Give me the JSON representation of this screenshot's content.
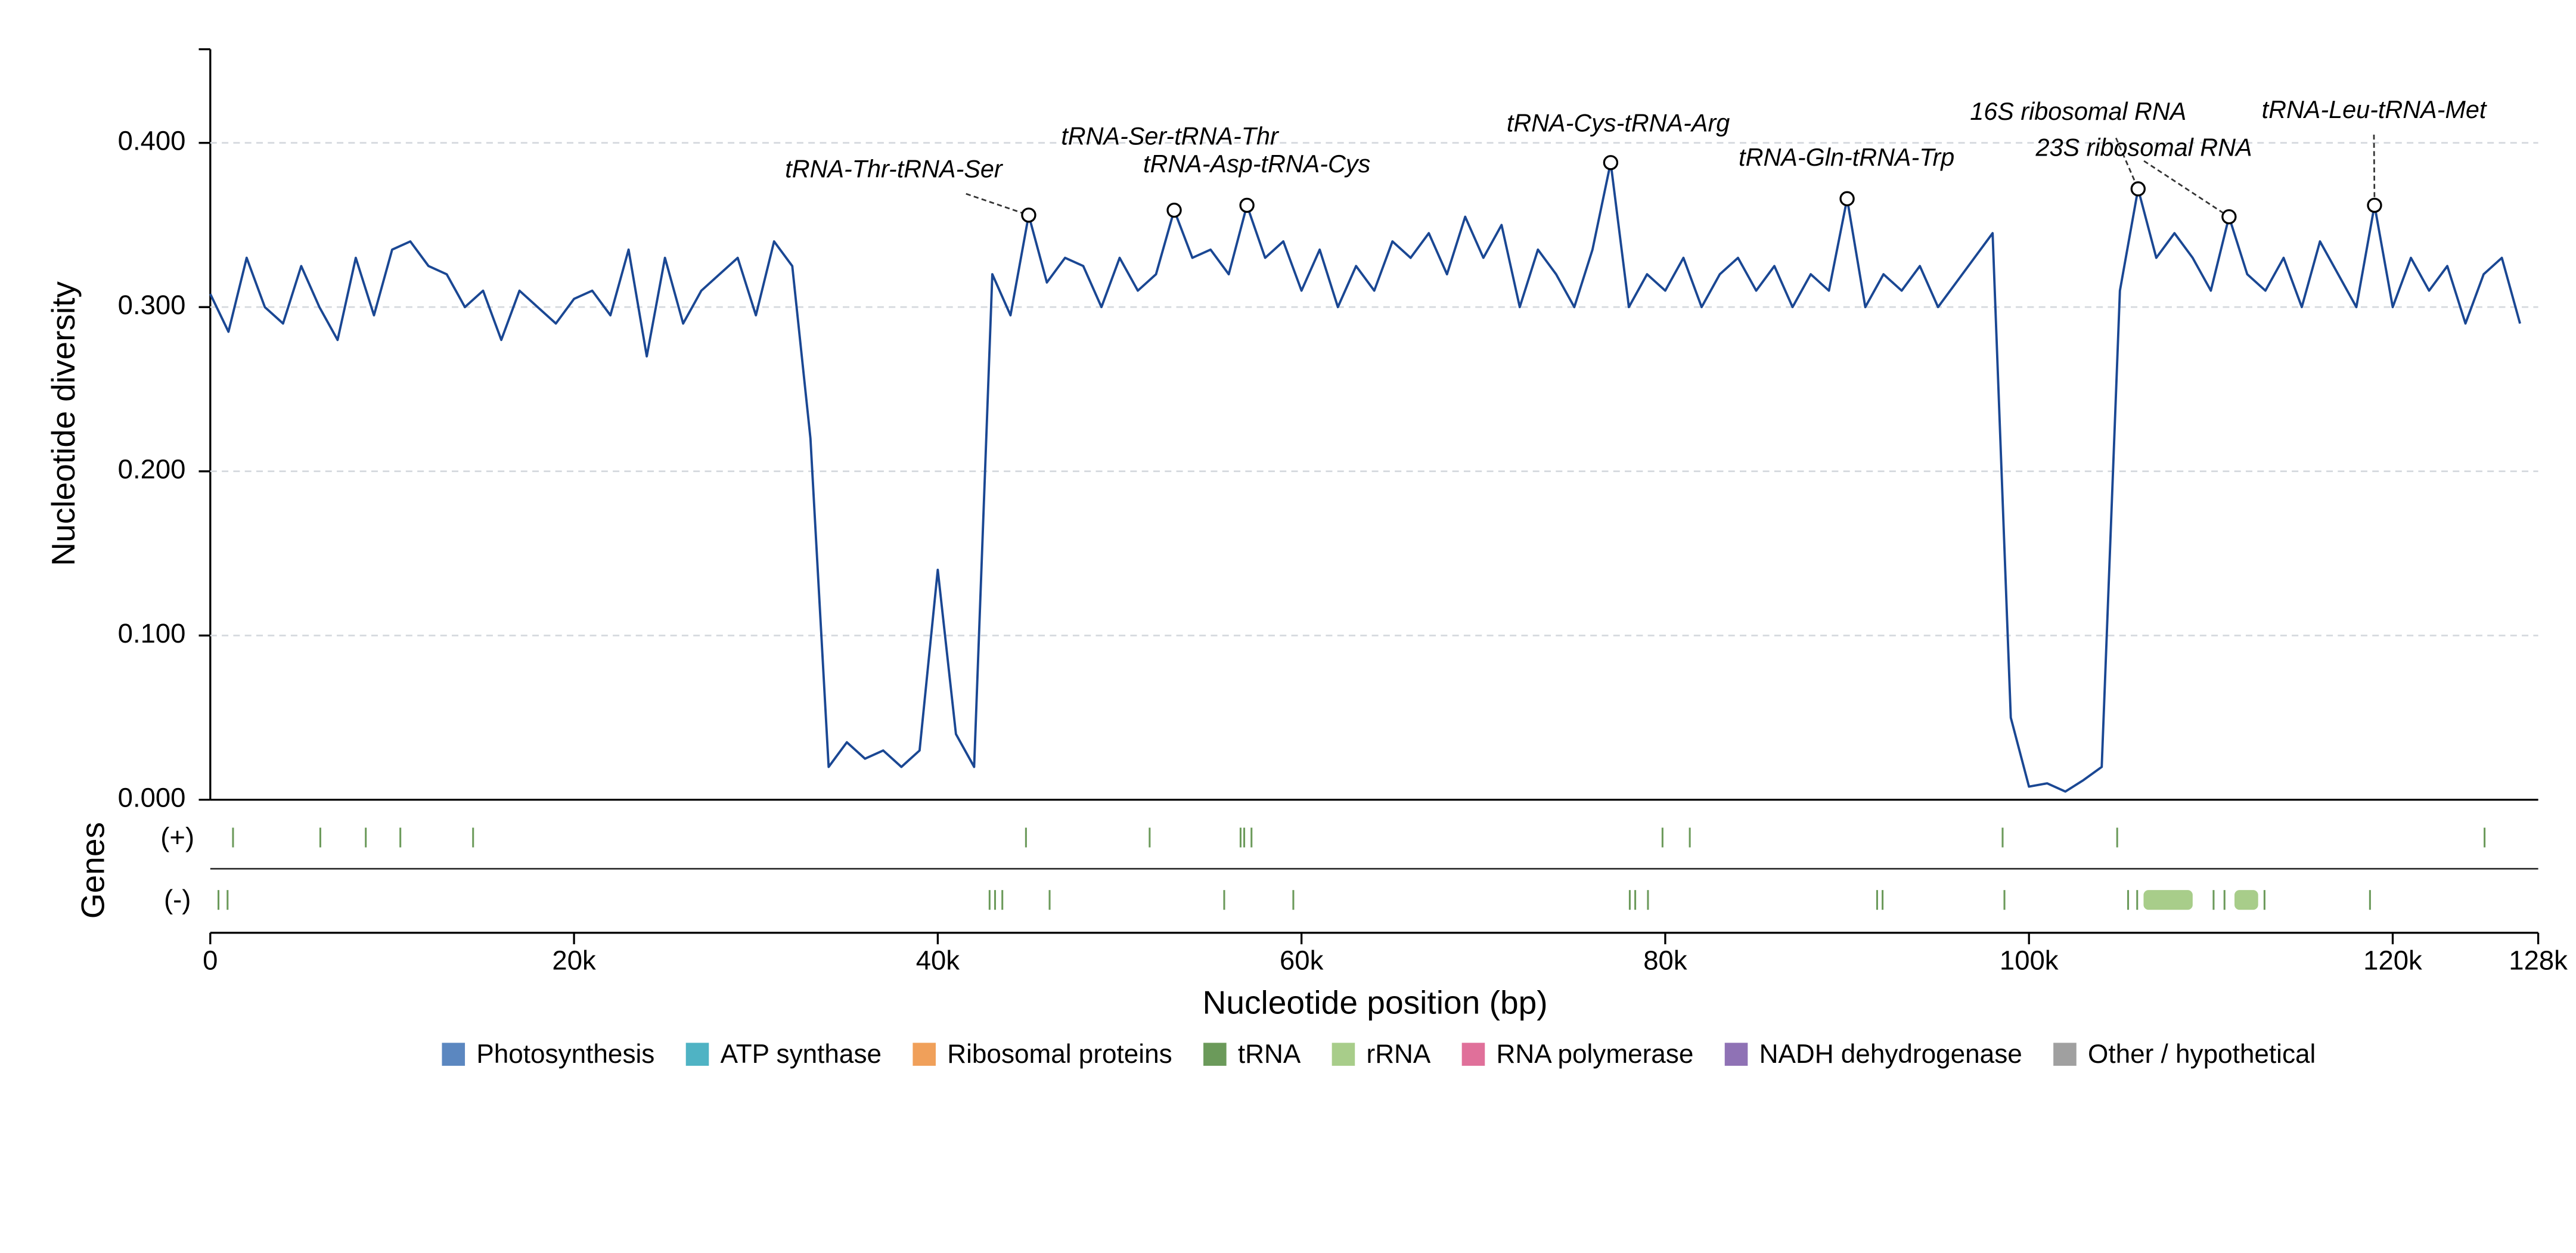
{
  "chart_data": {
    "type": "line",
    "xlabel": "Nucleotide position (bp)",
    "ylabel": "Nucleotide diversity",
    "x": [
      0,
      1000,
      2000,
      3000,
      4000,
      5000,
      6000,
      7000,
      8000,
      9000,
      10000,
      11000,
      12000,
      13000,
      14000,
      15000,
      16000,
      17000,
      18000,
      19000,
      20000,
      21000,
      22000,
      23000,
      24000,
      25000,
      26000,
      27000,
      28000,
      29000,
      30000,
      31000,
      32000,
      33000,
      34000,
      35000,
      36000,
      37000,
      38000,
      39000,
      40000,
      41000,
      42000,
      43000,
      44000,
      45000,
      46000,
      47000,
      48000,
      49000,
      50000,
      51000,
      52000,
      53000,
      54000,
      55000,
      56000,
      57000,
      58000,
      59000,
      60000,
      61000,
      62000,
      63000,
      64000,
      65000,
      66000,
      67000,
      68000,
      69000,
      70000,
      71000,
      72000,
      73000,
      74000,
      75000,
      76000,
      77000,
      78000,
      79000,
      80000,
      81000,
      82000,
      83000,
      84000,
      85000,
      86000,
      87000,
      88000,
      89000,
      90000,
      91000,
      92000,
      93000,
      94000,
      95000,
      96000,
      97000,
      98000,
      99000,
      100000,
      101000,
      102000,
      103000,
      104000,
      105000,
      106000,
      107000,
      108000,
      109000,
      110000,
      111000,
      112000,
      113000,
      114000,
      115000,
      116000,
      117000,
      118000,
      119000,
      120000,
      121000,
      122000,
      123000,
      124000,
      125000,
      126000,
      127000
    ],
    "series": [
      {
        "name": "Nucleotide diversity",
        "color": "#1a4793",
        "values": [
          0.308,
          0.285,
          0.33,
          0.3,
          0.29,
          0.325,
          0.3,
          0.28,
          0.33,
          0.295,
          0.335,
          0.34,
          0.325,
          0.32,
          0.3,
          0.31,
          0.28,
          0.31,
          0.3,
          0.29,
          0.305,
          0.31,
          0.295,
          0.335,
          0.27,
          0.33,
          0.29,
          0.31,
          0.32,
          0.33,
          0.295,
          0.34,
          0.325,
          0.22,
          0.02,
          0.035,
          0.025,
          0.03,
          0.02,
          0.03,
          0.14,
          0.04,
          0.02,
          0.32,
          0.295,
          0.356,
          0.315,
          0.33,
          0.325,
          0.3,
          0.33,
          0.31,
          0.32,
          0.359,
          0.33,
          0.335,
          0.32,
          0.362,
          0.33,
          0.34,
          0.31,
          0.335,
          0.3,
          0.325,
          0.31,
          0.34,
          0.33,
          0.345,
          0.32,
          0.355,
          0.33,
          0.35,
          0.3,
          0.335,
          0.32,
          0.3,
          0.335,
          0.388,
          0.3,
          0.32,
          0.31,
          0.33,
          0.3,
          0.32,
          0.33,
          0.31,
          0.325,
          0.3,
          0.32,
          0.31,
          0.366,
          0.3,
          0.32,
          0.31,
          0.325,
          0.3,
          0.315,
          0.33,
          0.345,
          0.05,
          0.008,
          0.01,
          0.005,
          0.012,
          0.02,
          0.31,
          0.372,
          0.33,
          0.345,
          0.33,
          0.31,
          0.355,
          0.32,
          0.31,
          0.33,
          0.3,
          0.34,
          0.32,
          0.3,
          0.362,
          0.3,
          0.33,
          0.31,
          0.325,
          0.29,
          0.32,
          0.33,
          0.29
        ]
      }
    ],
    "xlim": [
      0,
      128000
    ],
    "ylim": [
      0,
      0.457
    ],
    "xticks": [
      {
        "value": 0,
        "label": "0"
      },
      {
        "value": 20000,
        "label": "20k"
      },
      {
        "value": 40000,
        "label": "40k"
      },
      {
        "value": 60000,
        "label": "60k"
      },
      {
        "value": 80000,
        "label": "80k"
      },
      {
        "value": 100000,
        "label": "100k"
      },
      {
        "value": 120000,
        "label": "120k"
      },
      {
        "value": 128000,
        "label": "128k"
      }
    ],
    "yticks": [
      {
        "value": 0,
        "label": "0.000"
      },
      {
        "value": 0.1,
        "label": "0.100"
      },
      {
        "value": 0.2,
        "label": "0.200"
      },
      {
        "value": 0.3,
        "label": "0.300"
      },
      {
        "value": 0.4,
        "label": "0.400"
      }
    ],
    "grid": true,
    "annotations": [
      {
        "text": "tRNA-Thr-tRNA-Ser",
        "x": 45000,
        "y": 0.356
      },
      {
        "text": "tRNA-Ser-tRNA-Thr",
        "x": 53000,
        "y": 0.359
      },
      {
        "text": "tRNA-Asp-tRNA-Cys",
        "x": 57000,
        "y": 0.362
      },
      {
        "text": "tRNA-Cys-tRNA-Arg",
        "x": 77000,
        "y": 0.388
      },
      {
        "text": "tRNA-Gln-tRNA-Trp",
        "x": 90000,
        "y": 0.366
      },
      {
        "text": "16S ribosomal RNA",
        "x": 106000,
        "y": 0.372
      },
      {
        "text": "23S ribosomal RNA",
        "x": 111000,
        "y": 0.355
      },
      {
        "text": "tRNA-Leu-tRNA-Met",
        "x": 119000,
        "y": 0.362
      }
    ],
    "gene_track": {
      "label": "Genes",
      "strand_labels": [
        "(+)",
        "(-)"
      ],
      "plus": [
        {
          "start": 1200,
          "end": 1300,
          "group": "tRNA"
        },
        {
          "start": 6000,
          "end": 6100,
          "group": "tRNA"
        },
        {
          "start": 8500,
          "end": 8600,
          "group": "tRNA"
        },
        {
          "start": 10400,
          "end": 10500,
          "group": "tRNA"
        },
        {
          "start": 14400,
          "end": 14500,
          "group": "tRNA"
        },
        {
          "start": 44800,
          "end": 44900,
          "group": "tRNA"
        },
        {
          "start": 51600,
          "end": 51700,
          "group": "tRNA"
        },
        {
          "start": 56600,
          "end": 56700,
          "group": "tRNA"
        },
        {
          "start": 56800,
          "end": 56900,
          "group": "tRNA"
        },
        {
          "start": 57200,
          "end": 57300,
          "group": "tRNA"
        },
        {
          "start": 79800,
          "end": 79900,
          "group": "tRNA"
        },
        {
          "start": 81300,
          "end": 81400,
          "group": "tRNA"
        },
        {
          "start": 98500,
          "end": 98600,
          "group": "tRNA"
        },
        {
          "start": 104800,
          "end": 104900,
          "group": "tRNA"
        },
        {
          "start": 125000,
          "end": 125100,
          "group": "tRNA"
        }
      ],
      "minus": [
        {
          "start": 400,
          "end": 500,
          "group": "tRNA"
        },
        {
          "start": 900,
          "end": 1000,
          "group": "tRNA"
        },
        {
          "start": 42800,
          "end": 42900,
          "group": "tRNA"
        },
        {
          "start": 43100,
          "end": 43200,
          "group": "tRNA"
        },
        {
          "start": 43500,
          "end": 43600,
          "group": "tRNA"
        },
        {
          "start": 46100,
          "end": 46200,
          "group": "tRNA"
        },
        {
          "start": 55700,
          "end": 55800,
          "group": "tRNA"
        },
        {
          "start": 59500,
          "end": 59600,
          "group": "tRNA"
        },
        {
          "start": 78000,
          "end": 78100,
          "group": "tRNA"
        },
        {
          "start": 78300,
          "end": 78400,
          "group": "tRNA"
        },
        {
          "start": 79000,
          "end": 79100,
          "group": "tRNA"
        },
        {
          "start": 91600,
          "end": 91700,
          "group": "tRNA"
        },
        {
          "start": 91900,
          "end": 92000,
          "group": "tRNA"
        },
        {
          "start": 98600,
          "end": 98700,
          "group": "tRNA"
        },
        {
          "start": 105400,
          "end": 105500,
          "group": "tRNA"
        },
        {
          "start": 105900,
          "end": 106000,
          "group": "tRNA"
        },
        {
          "start": 106300,
          "end": 109000,
          "group": "rRNA"
        },
        {
          "start": 110100,
          "end": 110200,
          "group": "tRNA"
        },
        {
          "start": 110700,
          "end": 110800,
          "group": "tRNA"
        },
        {
          "start": 111300,
          "end": 112600,
          "group": "rRNA"
        },
        {
          "start": 112900,
          "end": 113000,
          "group": "tRNA"
        },
        {
          "start": 118700,
          "end": 118800,
          "group": "tRNA"
        }
      ]
    },
    "legend": [
      {
        "name": "Photosynthesis",
        "color": "#5b87c0"
      },
      {
        "name": "ATP synthase",
        "color": "#4fb3c4"
      },
      {
        "name": "Ribosomal proteins",
        "color": "#f0a05a"
      },
      {
        "name": "tRNA",
        "color": "#6b9a5a"
      },
      {
        "name": "rRNA",
        "color": "#a8cd8a"
      },
      {
        "name": "RNA polymerase",
        "color": "#e0709a"
      },
      {
        "name": "NADH dehydrogenase",
        "color": "#8f72b5"
      },
      {
        "name": "Other / hypothetical",
        "color": "#a0a0a0"
      }
    ]
  }
}
